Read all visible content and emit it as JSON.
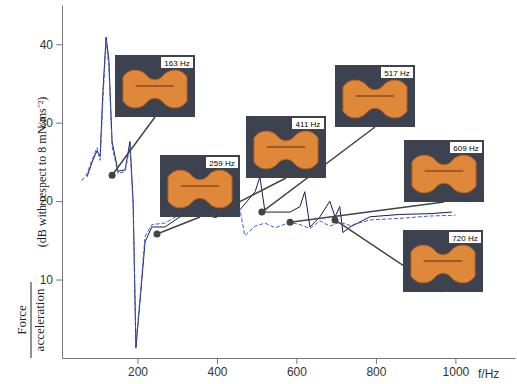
{
  "chart_data": {
    "type": "line",
    "x_label": "f/Hz",
    "y_label": {
      "numerator": "Force",
      "denominator": "acceleration",
      "unit": "(dB with respect to 8 mN/ms⁻²)"
    },
    "xlim": [
      10,
      1150
    ],
    "ylim": [
      0,
      45
    ],
    "xticks": [
      200,
      400,
      600,
      800,
      1000
    ],
    "yticks": [
      10,
      20,
      30,
      40
    ],
    "series": [
      {
        "color": "#1c1c4a",
        "line_style": "solid",
        "x": [
          73,
          86,
          98,
          106,
          113,
          121,
          128,
          136,
          151,
          169,
          181,
          189,
          196,
          206,
          219,
          236,
          269,
          307,
          357,
          395,
          458,
          496,
          508,
          521,
          546,
          584,
          609,
          621,
          634,
          659,
          684,
          697,
          709,
          717,
          735,
          785,
          860,
          936,
          991
        ],
        "values": [
          23.1,
          25,
          26.4,
          25.7,
          34,
          40.9,
          38,
          27.6,
          23.8,
          24,
          27.6,
          20,
          1.3,
          7,
          14.8,
          16.7,
          16.7,
          18,
          18.4,
          18.3,
          18.9,
          21.2,
          23.1,
          18.6,
          18.6,
          18.6,
          19.3,
          21.2,
          16.7,
          18,
          20,
          18,
          19.3,
          16,
          16.7,
          18,
          18.3,
          18.4,
          18.6
        ]
      },
      {
        "color": "#3a5fd0",
        "line_style": "dashed",
        "x": [
          60,
          73,
          86,
          98,
          106,
          113,
          121,
          128,
          136,
          151,
          169,
          181,
          189,
          196,
          206,
          219,
          236,
          269,
          307,
          357,
          395,
          458,
          470,
          496,
          521,
          546,
          584,
          609,
          634,
          659,
          684,
          709,
          735,
          785,
          860,
          936,
          1000
        ],
        "values": [
          22.6,
          23.5,
          25.3,
          26.8,
          25.2,
          33,
          40.5,
          37,
          27,
          23.5,
          23.8,
          27,
          19.5,
          1.8,
          7.5,
          15.5,
          17,
          17.2,
          18.3,
          18.8,
          18.6,
          18.9,
          15.6,
          16.8,
          17.2,
          16.6,
          17.3,
          17,
          16.5,
          17.5,
          16.8,
          17.3,
          16.9,
          17.6,
          17.8,
          18.1,
          18.2
        ]
      }
    ],
    "annotations": [
      {
        "label": "163 Hz",
        "x": 136,
        "y": 23.3
      },
      {
        "label": "259 Hz",
        "x": 249,
        "y": 15.8
      },
      {
        "label": "411 Hz",
        "x": 395,
        "y": 18.3
      },
      {
        "label": "517 Hz",
        "x": 513,
        "y": 18.6
      },
      {
        "label": "609 Hz",
        "x": 584,
        "y": 17.3
      },
      {
        "label": "720 Hz",
        "x": 697,
        "y": 17.6
      }
    ]
  }
}
